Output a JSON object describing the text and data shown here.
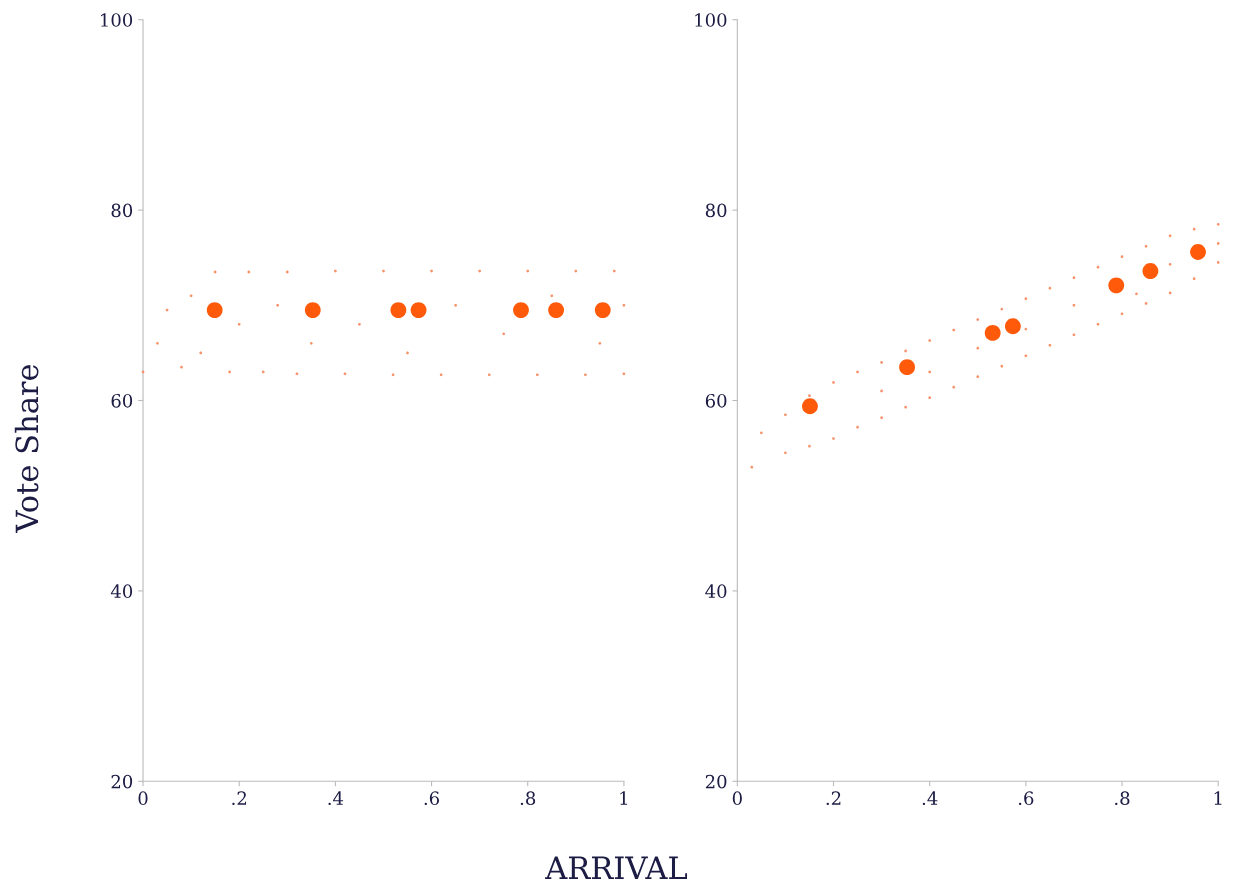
{
  "chart_data": [
    {
      "type": "scatter",
      "xlabel": "ARRIVAL",
      "ylabel": "Vote Share",
      "xlim": [
        0,
        1
      ],
      "ylim": [
        20,
        100
      ],
      "xticks": [
        0,
        {
          "value": 0.2,
          "label": ".2"
        },
        {
          "value": 0.4,
          "label": ".4"
        },
        {
          "value": 0.6,
          "label": ".6"
        },
        {
          "value": 0.8,
          "label": ".8"
        },
        1
      ],
      "yticks": [
        20,
        40,
        60,
        80,
        100
      ],
      "grid": false,
      "legend": false,
      "series": [
        {
          "color": "#f6936a",
          "marker": "circle",
          "x": [
            0.0,
            0.03,
            0.05,
            0.08,
            0.1,
            0.12,
            0.15,
            0.18,
            0.2,
            0.22,
            0.25,
            0.28,
            0.3,
            0.32,
            0.35,
            0.4,
            0.42,
            0.45,
            0.5,
            0.52,
            0.55,
            0.6,
            0.62,
            0.65,
            0.7,
            0.72,
            0.75,
            0.8,
            0.82,
            0.85,
            0.9,
            0.92,
            0.95,
            0.98,
            1.0,
            1.0
          ],
          "values": [
            63,
            66,
            69.5,
            63.5,
            71,
            65,
            73.5,
            63,
            68,
            73.5,
            63,
            70,
            73.5,
            62.8,
            66,
            73.6,
            62.8,
            68,
            73.6,
            62.7,
            65,
            73.6,
            62.7,
            70,
            73.6,
            62.7,
            67,
            73.6,
            62.7,
            71,
            73.6,
            62.7,
            66,
            73.6,
            62.8,
            70
          ]
        },
        {
          "color": "#ff5a0a",
          "marker": "circle",
          "x": [
            0.149,
            0.353,
            0.531,
            0.573,
            0.786,
            0.859,
            0.956
          ],
          "values": [
            69.5,
            69.5,
            69.5,
            69.5,
            69.5,
            69.5,
            69.5
          ]
        }
      ]
    },
    {
      "type": "scatter",
      "xlim": [
        0,
        1
      ],
      "ylim": [
        20,
        100
      ],
      "xticks": [
        0,
        {
          "value": 0.2,
          "label": ".2"
        },
        {
          "value": 0.4,
          "label": ".4"
        },
        {
          "value": 0.6,
          "label": ".6"
        },
        {
          "value": 0.8,
          "label": ".8"
        },
        1
      ],
      "yticks": [
        20,
        40,
        60,
        80,
        100
      ],
      "grid": false,
      "legend": false,
      "series": [
        {
          "color": "#f6936a",
          "marker": "circle",
          "x": [
            0.03,
            0.05,
            0.1,
            0.1,
            0.15,
            0.15,
            0.2,
            0.2,
            0.25,
            0.25,
            0.3,
            0.3,
            0.3,
            0.35,
            0.35,
            0.4,
            0.4,
            0.4,
            0.45,
            0.45,
            0.5,
            0.5,
            0.5,
            0.55,
            0.55,
            0.6,
            0.6,
            0.6,
            0.65,
            0.65,
            0.7,
            0.7,
            0.7,
            0.75,
            0.75,
            0.8,
            0.8,
            0.83,
            0.85,
            0.85,
            0.9,
            0.9,
            0.9,
            0.95,
            0.95,
            1,
            1,
            1
          ],
          "values": [
            53,
            56.6,
            54.5,
            58.5,
            55.2,
            60.5,
            56,
            61.9,
            57.2,
            63,
            58.2,
            64,
            61,
            59.3,
            65.2,
            60.3,
            66.3,
            63,
            61.4,
            67.4,
            62.5,
            68.5,
            65.5,
            63.6,
            69.6,
            64.7,
            70.7,
            67.5,
            65.8,
            71.8,
            66.9,
            72.9,
            70,
            68,
            74,
            69.1,
            75.1,
            71.2,
            70.2,
            76.2,
            71.3,
            77.3,
            74.3,
            72.8,
            78,
            74.5,
            78.5,
            76.5
          ]
        },
        {
          "color": "#ff5a0a",
          "marker": "circle",
          "x": [
            0.151,
            0.353,
            0.531,
            0.573,
            0.788,
            0.859,
            0.958
          ],
          "values": [
            59.4,
            63.5,
            67.1,
            67.8,
            72.1,
            73.6,
            75.6
          ]
        }
      ]
    }
  ]
}
